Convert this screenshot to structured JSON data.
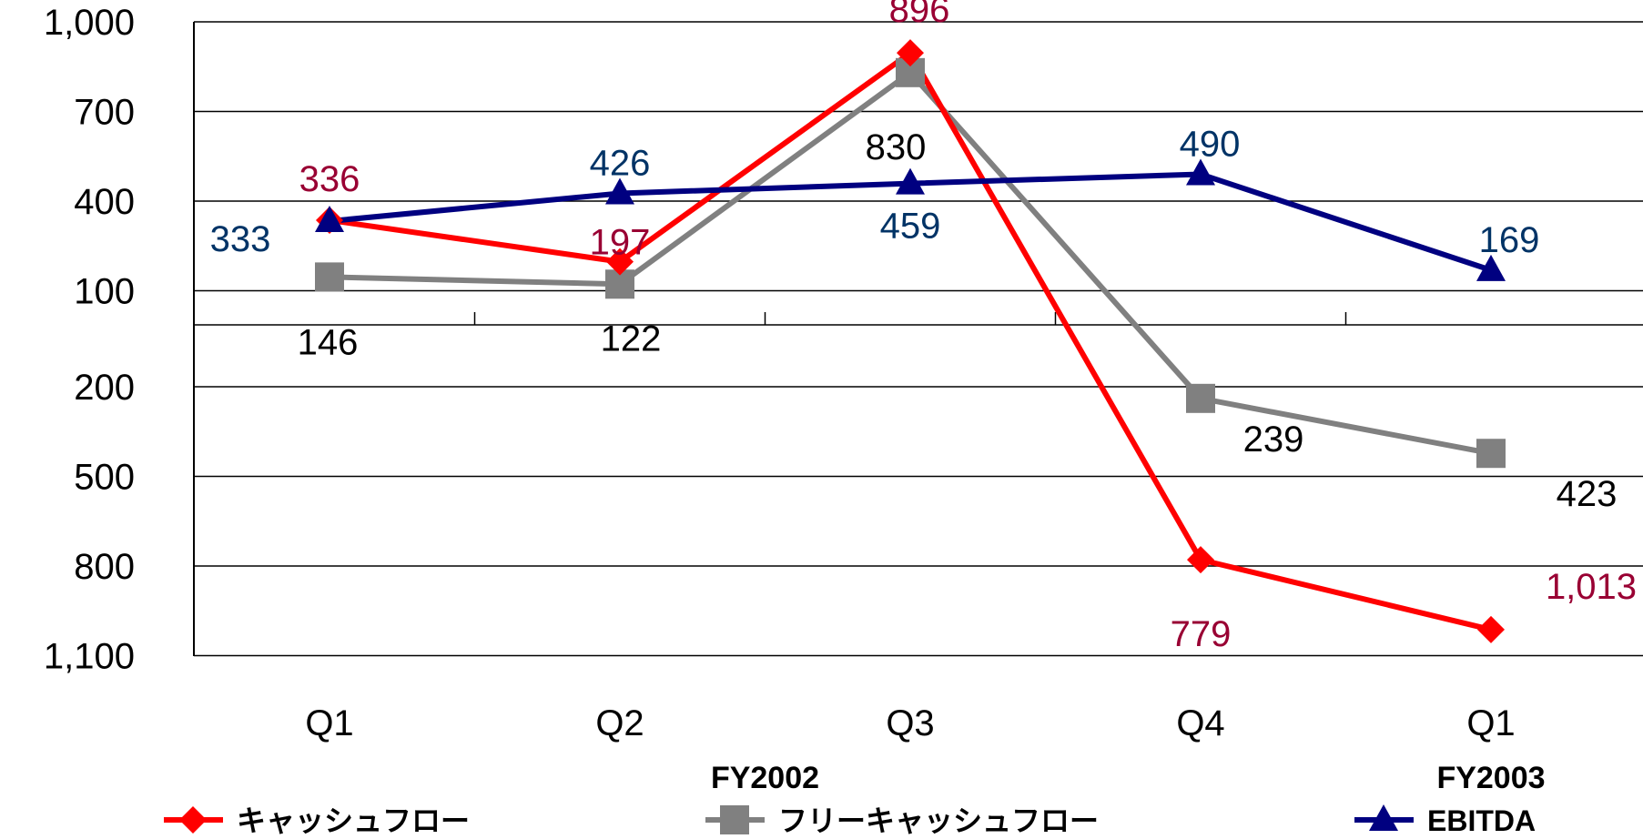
{
  "chart_data": {
    "type": "line",
    "categories": [
      "Q1",
      "Q2",
      "Q3",
      "Q4",
      "Q1"
    ],
    "fiscal_year_labels": [
      {
        "category_index": 1.5,
        "label": "FY2002"
      },
      {
        "category_index": 4,
        "label": "FY2003"
      }
    ],
    "y_tick_labels": [
      "1,000",
      "700",
      "400",
      "100",
      "200",
      "500",
      "800",
      "1,100"
    ],
    "y_tick_values": [
      1000,
      700,
      400,
      100,
      -200,
      -500,
      -800,
      -1100
    ],
    "ylim": [
      -1100,
      1000
    ],
    "y_break_at": 0,
    "grid": true,
    "legend_position": "bottom",
    "series": [
      {
        "name": "キャッシュフロー",
        "color": "#ff0000",
        "label_color": "#990033",
        "marker": "diamond",
        "values": [
          336,
          197,
          896,
          -779,
          -1013
        ],
        "labels": [
          "336",
          "197",
          "896",
          "779",
          "1,013"
        ]
      },
      {
        "name": "フリーキャッシュフロー",
        "color": "#808080",
        "label_color": "#000000",
        "marker": "square",
        "values": [
          146,
          122,
          830,
          -239,
          -423
        ],
        "labels": [
          "146",
          "122",
          "830",
          "239",
          "423"
        ]
      },
      {
        "name": "EBITDA",
        "color": "#000080",
        "label_color": "#003366",
        "marker": "triangle",
        "values": [
          333,
          426,
          459,
          490,
          169
        ],
        "labels": [
          "333",
          "426",
          "459",
          "490",
          "169"
        ]
      }
    ]
  }
}
